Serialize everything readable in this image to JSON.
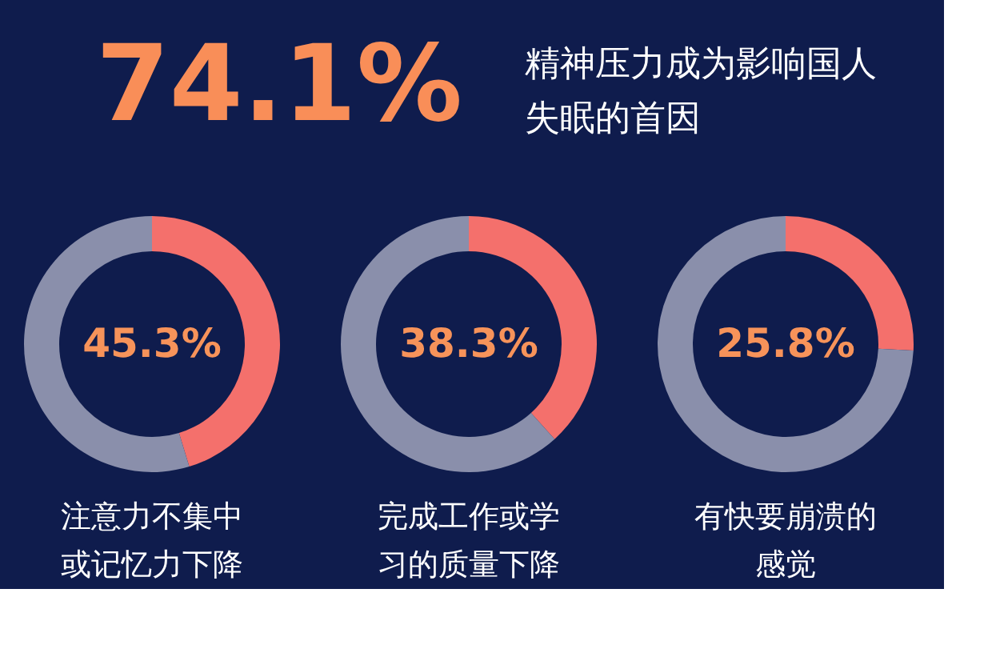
{
  "chart_data": [
    {
      "type": "other",
      "title": "74.1%",
      "subtitle": "精神压力成为影响国人失眠的首因"
    },
    {
      "type": "donut",
      "title": "注意力不集中或记忆力下降",
      "categories": [
        null,
        null
      ],
      "values": [
        45.3,
        54.7
      ],
      "colors": [
        "#f4706c",
        "#8a8fab"
      ],
      "value_labels": [
        "45.3%",
        null
      ]
    },
    {
      "type": "donut",
      "title": "完成工作或学习的质量下降",
      "categories": [
        null,
        null
      ],
      "values": [
        38.3,
        61.7
      ],
      "colors": [
        "#f4706c",
        "#8a8fab"
      ],
      "value_labels": [
        "38.3%",
        null
      ]
    },
    {
      "type": "donut",
      "title": "有快要崩溃的感觉",
      "categories": [
        null,
        null
      ],
      "values": [
        25.8,
        74.2
      ],
      "colors": [
        "#f4706c",
        "#8a8fab"
      ],
      "value_labels": [
        "25.8%",
        null
      ]
    }
  ]
}
